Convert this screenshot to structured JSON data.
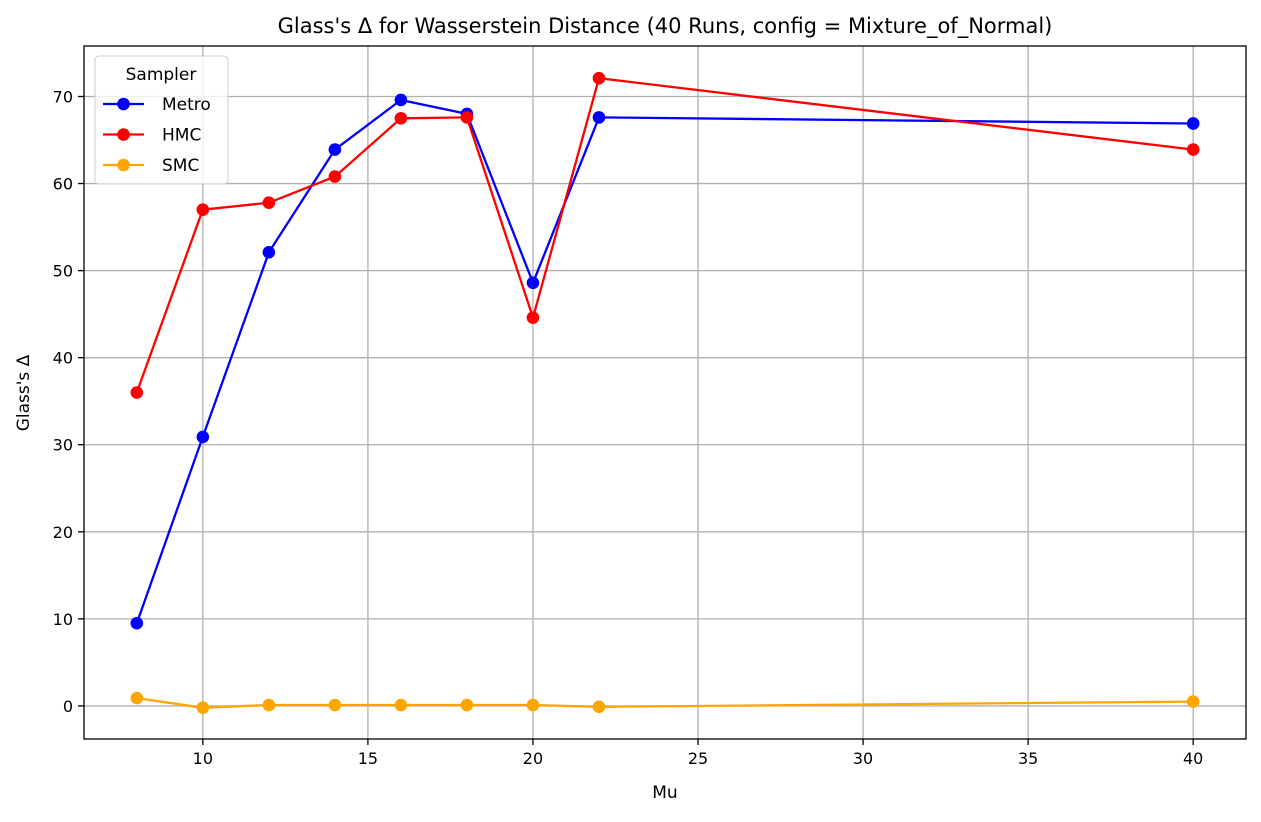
{
  "chart_data": {
    "type": "line",
    "title": "Glass's Δ for Wasserstein Distance (40 Runs, config = Mixture_of_Normal)",
    "xlabel": "Mu",
    "ylabel": "Glass's Δ",
    "x": [
      8,
      10,
      12,
      14,
      16,
      18,
      20,
      22,
      40
    ],
    "xlim": [
      6.4,
      41.6
    ],
    "ylim": [
      -3.8,
      75.8
    ],
    "xticks": [
      10,
      15,
      20,
      25,
      30,
      35,
      40
    ],
    "yticks": [
      0,
      10,
      20,
      30,
      40,
      50,
      60,
      70
    ],
    "grid": true,
    "legend": {
      "title": "Sampler",
      "placement": "upper-left"
    },
    "series": [
      {
        "name": "Metro",
        "color": "#0000ff",
        "values": [
          9.5,
          30.9,
          52.1,
          63.9,
          69.6,
          68.0,
          48.6,
          67.6,
          66.9
        ]
      },
      {
        "name": "HMC",
        "color": "#ff0000",
        "values": [
          36.0,
          57.0,
          57.8,
          60.8,
          67.5,
          67.6,
          44.6,
          72.1,
          63.9
        ]
      },
      {
        "name": "SMC",
        "color": "#ffa500",
        "values": [
          0.9,
          -0.2,
          0.1,
          0.1,
          0.1,
          0.1,
          0.1,
          -0.1,
          0.5
        ]
      }
    ]
  }
}
